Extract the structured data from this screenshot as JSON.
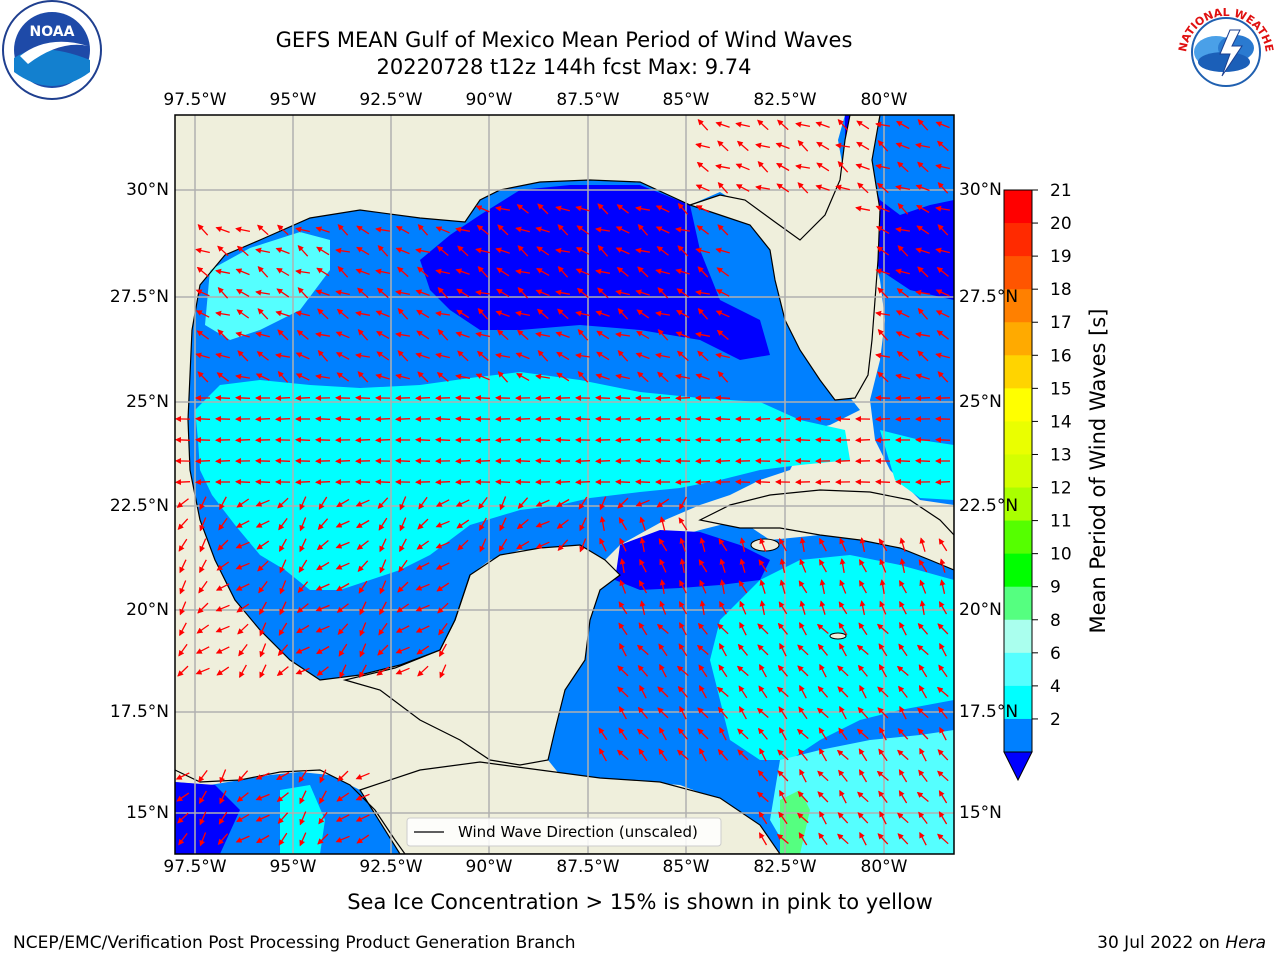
{
  "title_line1": "GEFS MEAN Gulf of Mexico Mean Period of Wind Waves",
  "title_line2": "20220728 t12z 144h fcst   Max: 9.74",
  "lon_ticks": [
    "97.5°W",
    "95°W",
    "92.5°W",
    "90°W",
    "87.5°W",
    "85°W",
    "82.5°W",
    "80°W"
  ],
  "lat_ticks": [
    "30°N",
    "27.5°N",
    "25°N",
    "22.5°N",
    "20°N",
    "17.5°N",
    "15°N"
  ],
  "legend_label": "Wind Wave Direction (unscaled)",
  "colorbar": {
    "label": "Mean Period of Wind Waves [s]",
    "ticks": [
      "21",
      "20",
      "19",
      "18",
      "17",
      "16",
      "15",
      "14",
      "13",
      "12",
      "11",
      "10",
      "9",
      "8",
      "6",
      "4",
      "2"
    ],
    "colors": [
      "#ff0000",
      "#ff2a00",
      "#ff5500",
      "#ff8000",
      "#ffaa00",
      "#ffd400",
      "#ffff00",
      "#eaff00",
      "#d4ff00",
      "#aaff00",
      "#55ff00",
      "#00ff00",
      "#55ff80",
      "#aaffee",
      "#55ffff",
      "#00ffff",
      "#0080ff"
    ],
    "extend_color": "#0000ff"
  },
  "colors": {
    "land": "#efefdc",
    "ocean_deep": "#0000ff",
    "ocean_mid": "#0080ff",
    "ocean_light": "#00ffff",
    "ocean_pale": "#55ffff",
    "arrow": "#ff0000",
    "grid": "#b0b0b0"
  },
  "bottom_note": "Sea Ice Concentration > 15% is shown in pink to yellow",
  "footer_left": "NCEP/EMC/Verification Post Processing Product Generation Branch",
  "footer_right_date": "30 Jul 2022 on ",
  "footer_right_host": "Hera",
  "noaa_logo_text": "NOAA",
  "nws_logo_text": "NATIONAL WEATHER SERVICE"
}
